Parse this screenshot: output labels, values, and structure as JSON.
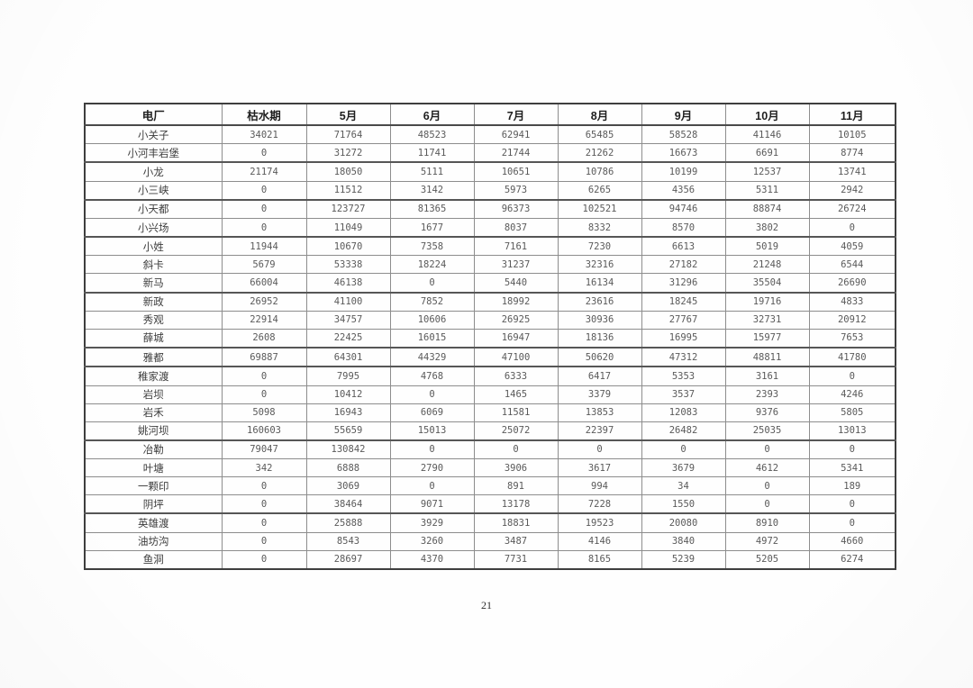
{
  "page": {
    "number": "21"
  },
  "table": {
    "columns": [
      "电厂",
      "枯水期",
      "5月",
      "6月",
      "7月",
      "8月",
      "9月",
      "10月",
      "11月"
    ],
    "rows": [
      {
        "name": "小关子",
        "values": [
          "34021",
          "71764",
          "48523",
          "62941",
          "65485",
          "58528",
          "41146",
          "10105"
        ]
      },
      {
        "name": "小河丰岩堡",
        "values": [
          "0",
          "31272",
          "11741",
          "21744",
          "21262",
          "16673",
          "6691",
          "8774"
        ]
      },
      {
        "name": "小龙",
        "values": [
          "21174",
          "18050",
          "5111",
          "10651",
          "10786",
          "10199",
          "12537",
          "13741"
        ]
      },
      {
        "name": "小三峡",
        "values": [
          "0",
          "11512",
          "3142",
          "5973",
          "6265",
          "4356",
          "5311",
          "2942"
        ]
      },
      {
        "name": "小天都",
        "values": [
          "0",
          "123727",
          "81365",
          "96373",
          "102521",
          "94746",
          "88874",
          "26724"
        ]
      },
      {
        "name": "小兴场",
        "values": [
          "0",
          "11049",
          "1677",
          "8037",
          "8332",
          "8570",
          "3802",
          "0"
        ]
      },
      {
        "name": "小姓",
        "values": [
          "11944",
          "10670",
          "7358",
          "7161",
          "7230",
          "6613",
          "5019",
          "4059"
        ]
      },
      {
        "name": "斜卡",
        "values": [
          "5679",
          "53338",
          "18224",
          "31237",
          "32316",
          "27182",
          "21248",
          "6544"
        ]
      },
      {
        "name": "新马",
        "values": [
          "66004",
          "46138",
          "0",
          "5440",
          "16134",
          "31296",
          "35504",
          "26690"
        ]
      },
      {
        "name": "新政",
        "values": [
          "26952",
          "41100",
          "7852",
          "18992",
          "23616",
          "18245",
          "19716",
          "4833"
        ]
      },
      {
        "name": "秀观",
        "values": [
          "22914",
          "34757",
          "10606",
          "26925",
          "30936",
          "27767",
          "32731",
          "20912"
        ]
      },
      {
        "name": "薛城",
        "values": [
          "2608",
          "22425",
          "16015",
          "16947",
          "18136",
          "16995",
          "15977",
          "7653"
        ]
      },
      {
        "name": "雅都",
        "values": [
          "69887",
          "64301",
          "44329",
          "47100",
          "50620",
          "47312",
          "48811",
          "41780"
        ]
      },
      {
        "name": "稚家渡",
        "values": [
          "0",
          "7995",
          "4768",
          "6333",
          "6417",
          "5353",
          "3161",
          "0"
        ]
      },
      {
        "name": "岩坝",
        "values": [
          "0",
          "10412",
          "0",
          "1465",
          "3379",
          "3537",
          "2393",
          "4246"
        ]
      },
      {
        "name": "岩禾",
        "values": [
          "5098",
          "16943",
          "6069",
          "11581",
          "13853",
          "12083",
          "9376",
          "5805"
        ]
      },
      {
        "name": "姚河坝",
        "values": [
          "160603",
          "55659",
          "15013",
          "25072",
          "22397",
          "26482",
          "25035",
          "13013"
        ]
      },
      {
        "name": "冶勒",
        "values": [
          "79047",
          "130842",
          "0",
          "0",
          "0",
          "0",
          "0",
          "0"
        ]
      },
      {
        "name": "叶塘",
        "values": [
          "342",
          "6888",
          "2790",
          "3906",
          "3617",
          "3679",
          "4612",
          "5341"
        ]
      },
      {
        "name": "一颗印",
        "values": [
          "0",
          "3069",
          "0",
          "891",
          "994",
          "34",
          "0",
          "189"
        ]
      },
      {
        "name": "阴坪",
        "values": [
          "0",
          "38464",
          "9071",
          "13178",
          "7228",
          "1550",
          "0",
          "0"
        ]
      },
      {
        "name": "英雄渡",
        "values": [
          "0",
          "25888",
          "3929",
          "18831",
          "19523",
          "20080",
          "8910",
          "0"
        ]
      },
      {
        "name": "油坊沟",
        "values": [
          "0",
          "8543",
          "3260",
          "3487",
          "4146",
          "3840",
          "4972",
          "4660"
        ]
      },
      {
        "name": "鱼洞",
        "values": [
          "0",
          "28697",
          "4370",
          "7731",
          "8165",
          "5239",
          "5205",
          "6274"
        ]
      }
    ]
  }
}
